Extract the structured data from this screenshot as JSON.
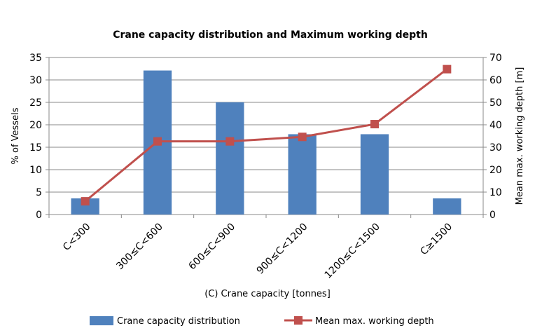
{
  "chart_data": {
    "type": "bar+line",
    "title": "Crane capacity distribution and Maximum working depth",
    "xlabel": "(C) Crane capacity [tonnes]",
    "ylabel": "% of Vessels",
    "y2label": "Mean max. working depth [m]",
    "categories": [
      "C<300",
      "300≤C<600",
      "600≤C<900",
      "900≤C<1200",
      "1200≤C<1500",
      "C≥1500"
    ],
    "ylim": [
      0,
      35
    ],
    "yticks": [
      0,
      5,
      10,
      15,
      20,
      25,
      30,
      35
    ],
    "y2lim": [
      0,
      70
    ],
    "y2ticks": [
      0,
      10,
      20,
      30,
      40,
      50,
      60,
      70
    ],
    "grid": true,
    "legend_position": "bottom",
    "series": [
      {
        "name": "Crane capacity distribution",
        "type": "bar",
        "axis": "left",
        "color": "#4F81BD",
        "values": [
          3.6,
          32.1,
          25.0,
          17.9,
          17.9,
          3.6
        ]
      },
      {
        "name": "Mean max. working depth",
        "type": "line",
        "axis": "right",
        "color": "#C0504D",
        "values": [
          5.9,
          32.6,
          32.6,
          34.6,
          40.3,
          64.8
        ]
      }
    ]
  }
}
